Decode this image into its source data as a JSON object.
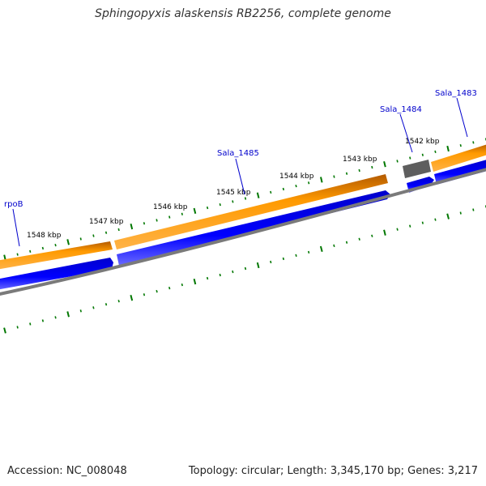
{
  "title": "Sphingopyxis alaskensis RB2256, complete genome",
  "footer": {
    "accession": "Accession: NC_008048",
    "summary": "Topology: circular; Length: 3,345,170 bp; Genes: 3,217"
  },
  "colors": {
    "orange_track": "#ff9900",
    "orange_edge": "#b35900",
    "blue_track": "#0000ee",
    "gray_track": "#808080",
    "tick_green": "#007700",
    "gene_label": "#0000cc",
    "pseudo_gene": "#606060"
  },
  "scale": {
    "ticks": [
      "1548 kbp",
      "1547 kbp",
      "1546 kbp",
      "1545 kbp",
      "1544 kbp",
      "1543 kbp",
      "1542 kbp"
    ]
  },
  "genes": [
    {
      "label": "rpoB"
    },
    {
      "label": "Sala_1485"
    },
    {
      "label": "Sala_1484"
    },
    {
      "label": "Sala_1483"
    }
  ]
}
